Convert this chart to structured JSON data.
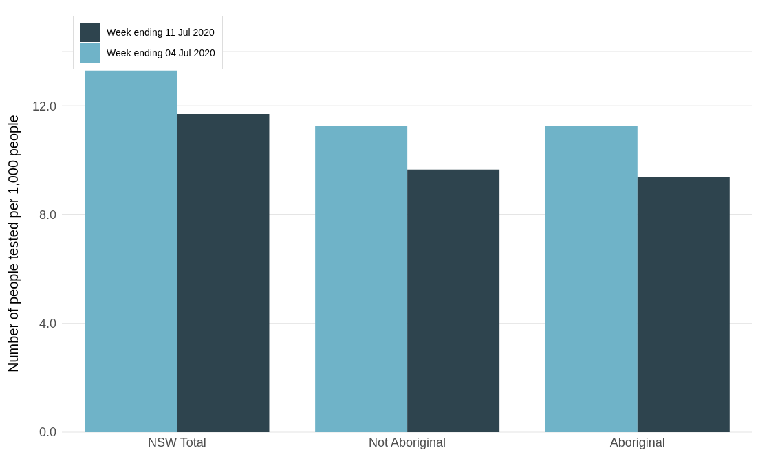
{
  "chart_data": {
    "type": "bar",
    "ylabel": "Number of people tested per 1,000 people",
    "categories": [
      "NSW Total",
      "Not Aboriginal",
      "Aboriginal"
    ],
    "series": [
      {
        "name": "Week ending 04 Jul 2020",
        "color": "#6fb3c8",
        "values": [
          13.3,
          11.26,
          11.26
        ]
      },
      {
        "name": "Week ending 11 Jul 2020",
        "color": "#2e444e",
        "values": [
          11.7,
          9.66,
          9.38
        ]
      }
    ],
    "ylim": [
      0,
      14
    ],
    "yticks": [
      {
        "value": 0,
        "label": "0.0"
      },
      {
        "value": 4,
        "label": "4.0"
      },
      {
        "value": 8,
        "label": "8.0"
      },
      {
        "value": 12,
        "label": "12.0"
      }
    ],
    "grid": "y",
    "legend": "top left"
  }
}
